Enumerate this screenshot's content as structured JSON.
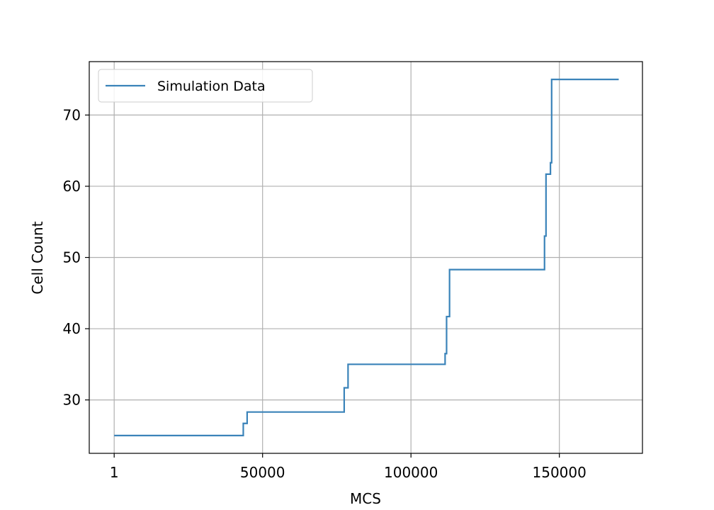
{
  "chart_data": {
    "type": "line",
    "title": "",
    "xlabel": "MCS",
    "ylabel": "Cell Count",
    "xlim": [
      -8400,
      178000
    ],
    "ylim": [
      22.5,
      77.5
    ],
    "x_ticks": [
      {
        "value": 1,
        "label": "1"
      },
      {
        "value": 50000,
        "label": "50000"
      },
      {
        "value": 100000,
        "label": "100000"
      },
      {
        "value": 150000,
        "label": "150000"
      }
    ],
    "y_ticks": [
      {
        "value": 30,
        "label": "30"
      },
      {
        "value": 40,
        "label": "40"
      },
      {
        "value": 50,
        "label": "50"
      },
      {
        "value": 60,
        "label": "60"
      },
      {
        "value": 70,
        "label": "70"
      }
    ],
    "grid": true,
    "legend_position": "upper-left",
    "series": [
      {
        "name": "Simulation Data",
        "color": "#3a83b9",
        "step": "post",
        "x": [
          1,
          43500,
          44800,
          77500,
          78800,
          111500,
          112000,
          113000,
          145000,
          145500,
          147000,
          147400,
          170000
        ],
        "y": [
          25,
          26.7,
          28.3,
          31.7,
          35,
          36.5,
          41.7,
          48.3,
          53,
          61.7,
          63.3,
          75,
          75
        ]
      }
    ]
  }
}
